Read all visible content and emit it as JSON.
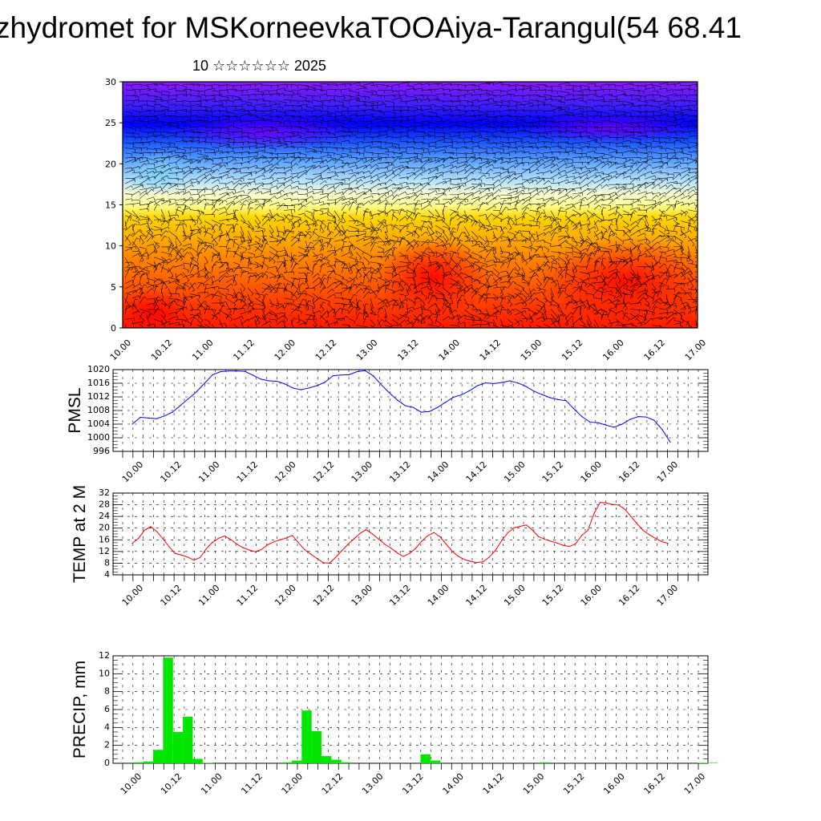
{
  "title": "zhydromet for MSKorneevkaTOOAiya-Tarangul(54 68.41",
  "subtitle": "10 ☆☆☆☆☆☆ 2025",
  "chart_data": [
    {
      "type": "heatmap",
      "ylim": [
        0,
        30
      ],
      "yticks": [
        0,
        5,
        10,
        15,
        20,
        25,
        30
      ],
      "xtick_labels": [
        "10.00",
        "10.12",
        "11.00",
        "11.12",
        "12.00",
        "12.12",
        "13.00",
        "13.12",
        "14.00",
        "14.12",
        "15.00",
        "15.12",
        "16.00",
        "16.12",
        "17.00"
      ],
      "overlay": "wind barbs",
      "colors": {
        "low": "#ff0000",
        "mid": "#ffff99",
        "high": "#7a00ff"
      }
    },
    {
      "type": "line",
      "ylabel": "PMSL",
      "ylim": [
        996,
        1020
      ],
      "yticks": [
        996,
        1000,
        1004,
        1008,
        1012,
        1016,
        1020
      ],
      "xtick_labels": [
        "10.00",
        "10.12",
        "11.00",
        "11.12",
        "12.00",
        "12.12",
        "13.00",
        "13.12",
        "14.00",
        "14.12",
        "15.00",
        "15.12",
        "16.00",
        "16.12",
        "17.00"
      ],
      "color": "#0000ff",
      "values": [
        1004,
        1006,
        1005.8,
        1005.6,
        1006.4,
        1007.5,
        1009.5,
        1011.5,
        1013.5,
        1016,
        1018.5,
        1019.4,
        1019.6,
        1019.6,
        1019.5,
        1018.4,
        1017.2,
        1016.7,
        1016.6,
        1015.8,
        1014.6,
        1014.1,
        1014.6,
        1015.3,
        1016.3,
        1018.2,
        1018.4,
        1018.5,
        1019.4,
        1019.7,
        1018.2,
        1015.6,
        1013.2,
        1011.1,
        1009.4,
        1008.9,
        1007.5,
        1007.7,
        1008.9,
        1010.4,
        1011.9,
        1012.6,
        1013.8,
        1015.3,
        1016.1,
        1015.9,
        1016.2,
        1016.7,
        1016.1,
        1015.1,
        1013.7,
        1012.7,
        1011.8,
        1011.2,
        1010.9,
        1008.5,
        1006.2,
        1004.6,
        1004.4,
        1003.7,
        1003.1,
        1004.0,
        1005.4,
        1006.2,
        1006.1,
        1005.1,
        1002.4,
        998.7
      ]
    },
    {
      "type": "line",
      "ylabel": "TEMP at 2 M",
      "ylim": [
        4,
        32
      ],
      "yticks": [
        4,
        8,
        12,
        16,
        20,
        24,
        28,
        32
      ],
      "xtick_labels": [
        "10.00",
        "10.12",
        "11.00",
        "11.12",
        "12.00",
        "12.12",
        "13.00",
        "13.12",
        "14.00",
        "14.12",
        "15.00",
        "15.12",
        "16.00",
        "16.12",
        "17.00"
      ],
      "color": "#ff0000",
      "values": [
        14.8,
        16.5,
        19.3,
        20.5,
        18.8,
        16.3,
        13.6,
        11.3,
        10.8,
        10.1,
        9.1,
        9.9,
        12.9,
        15.1,
        16.5,
        17.3,
        16.1,
        14.5,
        13.3,
        12.5,
        11.9,
        12.7,
        14.3,
        15.3,
        16.0,
        16.6,
        17.5,
        15.0,
        12.6,
        11.1,
        9.6,
        8.2,
        8.0,
        9.9,
        12.2,
        14.4,
        16.3,
        18.2,
        19.5,
        18.0,
        16.3,
        14.5,
        13.2,
        11.6,
        10.3,
        11.3,
        13.0,
        15.5,
        17.4,
        18.5,
        17.0,
        14.5,
        12.0,
        10.3,
        9.2,
        8.6,
        8.2,
        8.5,
        10.1,
        12.4,
        15.7,
        18.4,
        20.1,
        20.6,
        21.1,
        19.3,
        17.1,
        16.2,
        15.5,
        14.9,
        14.1,
        13.7,
        14.6,
        17.5,
        19.2,
        25.0,
        28.8,
        28.6,
        28.1,
        27.9,
        26.5,
        24.0,
        21.5,
        19.2,
        17.7,
        16.5,
        15.4,
        14.8
      ]
    },
    {
      "type": "bar",
      "ylabel": "PRECIP, mm",
      "ylim": [
        0,
        12
      ],
      "yticks": [
        0,
        2,
        4,
        6,
        8,
        10,
        12
      ],
      "xtick_labels": [
        "10.00",
        "10.12",
        "11.00",
        "11.12",
        "12.00",
        "12.12",
        "13.00",
        "13.12",
        "14.00",
        "14.12",
        "15.00",
        "15.12",
        "16.00",
        "16.12",
        "17.00"
      ],
      "color": "#00e600",
      "values": [
        0,
        0.1,
        0.2,
        1.5,
        11.8,
        3.5,
        5.2,
        0.5,
        0.05,
        0,
        0,
        0,
        0,
        0,
        0,
        0,
        0.1,
        0.3,
        5.9,
        3.6,
        0.8,
        0.4,
        0.1,
        0,
        0,
        0,
        0,
        0,
        0,
        0,
        1.0,
        0.3,
        0,
        0,
        0,
        0,
        0,
        0,
        0,
        0,
        0,
        0,
        0.1,
        0,
        0,
        0,
        0,
        0,
        0,
        0,
        0,
        0,
        0,
        0,
        0,
        0,
        0,
        0,
        0.05,
        0.05,
        0,
        0,
        0,
        0,
        0,
        0,
        0,
        0,
        0,
        0,
        0,
        0,
        0,
        0,
        0,
        0,
        0,
        0,
        0,
        0,
        0,
        0,
        0,
        0
      ]
    }
  ]
}
